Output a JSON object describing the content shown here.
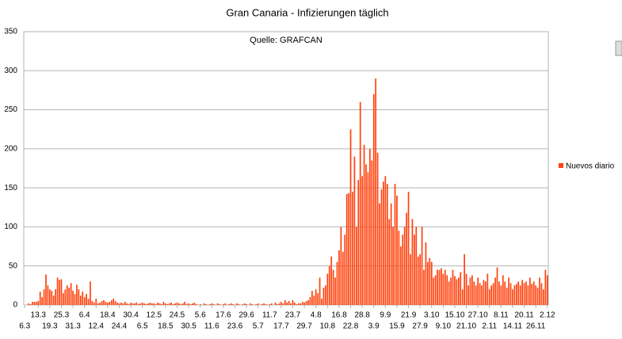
{
  "chart_data": {
    "type": "bar",
    "title": "Gran Canaria - Infizierungen täglich",
    "annotation": "Quelle: GRAFCAN",
    "color": "#ff420e",
    "grid": true,
    "legend": "right",
    "ylim": [
      0,
      350
    ],
    "yticks": [
      0,
      50,
      100,
      150,
      200,
      250,
      300,
      350
    ],
    "categories": [
      "6.3",
      null,
      null,
      null,
      null,
      null,
      null,
      "13.3",
      null,
      null,
      null,
      null,
      null,
      "19.3",
      null,
      null,
      null,
      null,
      null,
      "25.3",
      null,
      null,
      null,
      null,
      null,
      "31.3",
      null,
      null,
      null,
      null,
      null,
      "6.4",
      null,
      null,
      null,
      null,
      null,
      "12.4",
      null,
      null,
      null,
      null,
      null,
      "18.4",
      null,
      null,
      null,
      null,
      null,
      "24.4",
      null,
      null,
      null,
      null,
      null,
      "30.4",
      null,
      null,
      null,
      null,
      null,
      "6.5",
      null,
      null,
      null,
      null,
      null,
      "12.5",
      null,
      null,
      null,
      null,
      null,
      "18.5",
      null,
      null,
      null,
      null,
      null,
      "24.5",
      null,
      null,
      null,
      null,
      null,
      "30.5",
      null,
      null,
      null,
      null,
      null,
      "5.6",
      null,
      null,
      null,
      null,
      null,
      "11.6",
      null,
      null,
      null,
      null,
      null,
      "17.6",
      null,
      null,
      null,
      null,
      null,
      "23.6",
      null,
      null,
      null,
      null,
      null,
      "29.6",
      null,
      null,
      null,
      null,
      null,
      "5.7",
      null,
      null,
      null,
      null,
      null,
      "11.7",
      null,
      null,
      null,
      null,
      null,
      "17.7",
      null,
      null,
      null,
      null,
      null,
      "23.7",
      null,
      null,
      null,
      null,
      null,
      "29.7",
      null,
      null,
      null,
      null,
      null,
      "4.8",
      null,
      null,
      null,
      null,
      null,
      "10.8",
      null,
      null,
      null,
      null,
      null,
      "16.8",
      null,
      null,
      null,
      null,
      null,
      "22.8",
      null,
      null,
      null,
      null,
      null,
      "28.8",
      null,
      null,
      null,
      null,
      null,
      "3.9",
      null,
      null,
      null,
      null,
      null,
      "9.9",
      null,
      null,
      null,
      null,
      null,
      "15.9",
      null,
      null,
      null,
      null,
      null,
      "21.9",
      null,
      null,
      null,
      null,
      null,
      "27.9",
      null,
      null,
      null,
      null,
      null,
      "3.10",
      null,
      null,
      null,
      null,
      null,
      "9.10",
      null,
      null,
      null,
      null,
      null,
      "15.10",
      null,
      null,
      null,
      null,
      null,
      "21.10",
      null,
      null,
      null,
      null,
      null,
      "27.10",
      null,
      null,
      null,
      null,
      null,
      "2.11",
      null,
      null,
      null,
      null,
      null,
      "8.11",
      null,
      null,
      null,
      null,
      null,
      "14.11",
      null,
      null,
      null,
      null,
      null,
      "20.11",
      null,
      null,
      null,
      null,
      null,
      "26.11",
      null,
      null,
      null,
      null,
      null,
      "2.12"
    ],
    "series": [
      {
        "name": "Nuevos diario",
        "color": "#ff420e",
        "values": [
          0,
          0,
          2,
          1,
          4,
          4,
          4,
          5,
          17,
          10,
          20,
          39,
          25,
          20,
          18,
          12,
          20,
          35,
          32,
          33,
          15,
          20,
          25,
          22,
          28,
          18,
          14,
          26,
          20,
          12,
          17,
          10,
          14,
          8,
          30,
          5,
          3,
          8,
          2,
          3,
          5,
          6,
          4,
          3,
          4,
          6,
          8,
          5,
          3,
          2,
          3,
          2,
          4,
          2,
          1,
          3,
          2,
          2,
          3,
          1,
          2,
          3,
          2,
          1,
          2,
          3,
          2,
          2,
          1,
          3,
          2,
          1,
          4,
          2,
          1,
          2,
          3,
          1,
          2,
          3,
          2,
          1,
          2,
          4,
          1,
          2,
          1,
          2,
          3,
          1,
          0,
          1,
          0,
          2,
          1,
          0,
          1,
          2,
          1,
          0,
          2,
          1,
          0,
          1,
          2,
          0,
          1,
          2,
          1,
          0,
          2,
          1,
          0,
          1,
          2,
          1,
          0,
          2,
          1,
          0,
          1,
          2,
          0,
          1,
          2,
          1,
          0,
          1,
          2,
          0,
          3,
          1,
          2,
          4,
          2,
          6,
          3,
          5,
          2,
          6,
          3,
          1,
          2,
          2,
          4,
          3,
          5,
          6,
          10,
          18,
          12,
          20,
          15,
          35,
          8,
          22,
          25,
          40,
          50,
          62,
          45,
          35,
          55,
          70,
          100,
          68,
          90,
          142,
          143,
          225,
          145,
          190,
          100,
          160,
          260,
          165,
          205,
          180,
          170,
          200,
          185,
          270,
          290,
          195,
          130,
          148,
          158,
          165,
          155,
          110,
          130,
          100,
          155,
          140,
          95,
          75,
          90,
          100,
          118,
          145,
          65,
          110,
          90,
          100,
          62,
          65,
          100,
          45,
          80,
          55,
          60,
          55,
          35,
          38,
          45,
          45,
          47,
          40,
          45,
          38,
          30,
          35,
          45,
          37,
          33,
          35,
          42,
          20,
          65,
          40,
          25,
          35,
          38,
          30,
          25,
          35,
          28,
          25,
          32,
          30,
          40,
          20,
          25,
          28,
          35,
          48,
          30,
          25,
          38,
          30,
          22,
          35,
          28,
          20,
          25,
          27,
          30,
          25,
          32,
          28,
          30,
          25,
          35,
          27,
          30,
          25,
          22,
          35,
          28,
          20,
          45,
          38
        ]
      }
    ]
  }
}
